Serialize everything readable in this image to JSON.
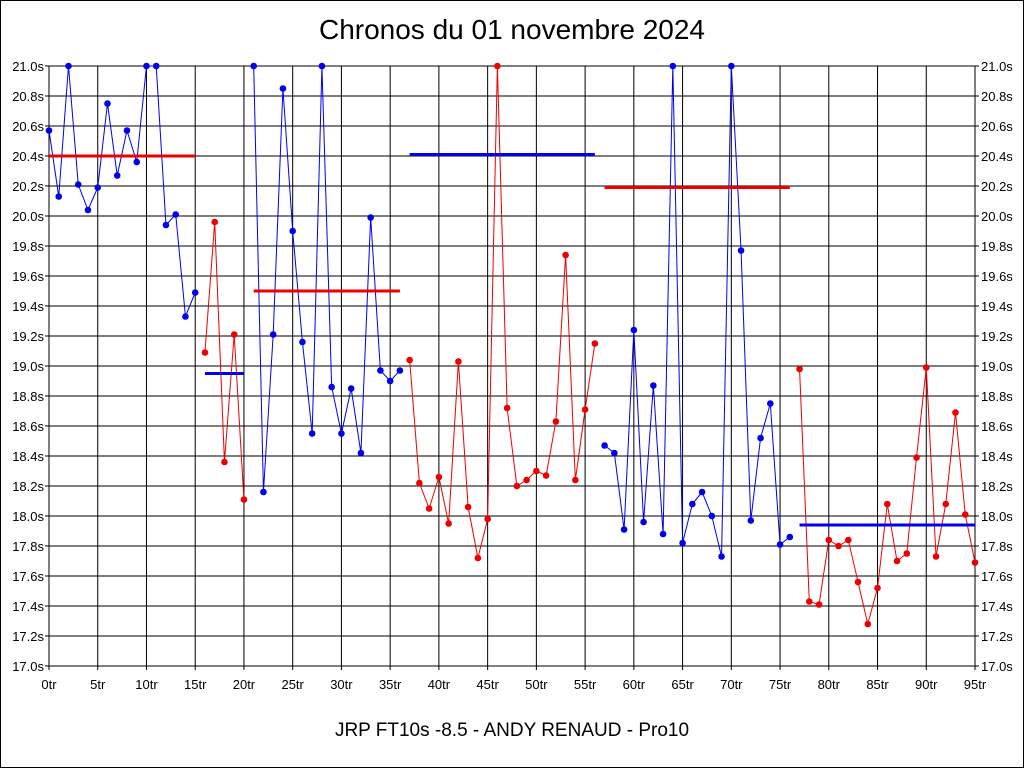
{
  "chart_data": {
    "type": "line",
    "title": "Chronos du 01 novembre 2024",
    "subtitle": "JRP FT10s -8.5 - ANDY RENAUD - Pro10",
    "ylim": [
      17.0,
      21.0
    ],
    "xlim": [
      0,
      95
    ],
    "y_ticks": [
      "17.0s",
      "17.2s",
      "17.4s",
      "17.6s",
      "17.8s",
      "18.0s",
      "18.2s",
      "18.4s",
      "18.6s",
      "18.8s",
      "19.0s",
      "19.2s",
      "19.4s",
      "19.6s",
      "19.8s",
      "20.0s",
      "20.2s",
      "20.4s",
      "20.6s",
      "20.8s",
      "21.0s"
    ],
    "x_ticks": [
      "0tr",
      "5tr",
      "10tr",
      "15tr",
      "20tr",
      "25tr",
      "30tr",
      "35tr",
      "40tr",
      "45tr",
      "50tr",
      "55tr",
      "60tr",
      "65tr",
      "70tr",
      "75tr",
      "80tr",
      "85tr",
      "90tr",
      "95tr"
    ],
    "grid": true,
    "colors": {
      "blue": "#0000ee",
      "red": "#ee0000"
    },
    "segments": [
      {
        "color": "blue",
        "start": 0,
        "values": [
          20.57,
          20.13,
          21.0,
          20.21,
          20.04,
          20.19,
          20.75,
          20.27,
          20.57,
          20.36,
          21.0,
          21.0,
          19.94,
          20.01,
          19.33,
          19.49
        ],
        "average": 20.4,
        "avg_range": [
          0,
          15
        ],
        "avg_color": "red"
      },
      {
        "color": "red",
        "start": 16,
        "values": [
          19.09,
          19.96,
          18.36,
          19.21,
          18.11
        ],
        "average": 18.95,
        "avg_range": [
          16,
          20
        ],
        "avg_color": "blue"
      },
      {
        "color": "blue",
        "start": 21,
        "values": [
          21.0,
          18.16,
          19.21,
          20.85,
          19.9,
          19.16,
          18.55,
          21.0,
          18.86,
          18.55,
          18.85,
          18.42,
          19.99,
          18.97,
          18.9,
          18.97
        ],
        "average": 19.5,
        "avg_range": [
          21,
          36
        ],
        "avg_color": "red"
      },
      {
        "color": "red",
        "start": 37,
        "values": [
          19.04,
          18.22,
          18.05,
          18.26,
          17.95,
          19.03,
          18.06,
          17.72,
          17.98,
          21.0,
          18.72,
          18.2,
          18.24,
          18.3,
          18.27,
          18.63,
          19.74,
          18.24,
          18.71,
          19.15
        ],
        "average": 20.41,
        "avg_range": [
          37,
          56
        ],
        "avg_color": "blue"
      },
      {
        "color": "blue",
        "start": 57,
        "values": [
          18.47,
          18.42,
          17.91,
          19.24,
          17.96,
          18.87,
          17.88,
          21.0,
          17.82,
          18.08,
          18.16,
          18.0,
          17.73,
          21.0,
          19.77,
          17.97,
          18.52,
          18.75,
          17.81,
          17.86
        ],
        "average": 20.19,
        "avg_range": [
          57,
          76
        ],
        "avg_color": "red"
      },
      {
        "color": "red",
        "start": 77,
        "values": [
          18.98,
          17.43,
          17.41,
          17.84,
          17.8,
          17.84,
          17.56,
          17.28,
          17.52,
          18.08,
          17.7,
          17.75,
          18.39,
          18.99,
          17.73,
          18.08,
          18.69,
          18.01,
          17.69
        ],
        "average": 17.94,
        "avg_range": [
          77,
          95
        ],
        "avg_color": "blue"
      }
    ]
  }
}
